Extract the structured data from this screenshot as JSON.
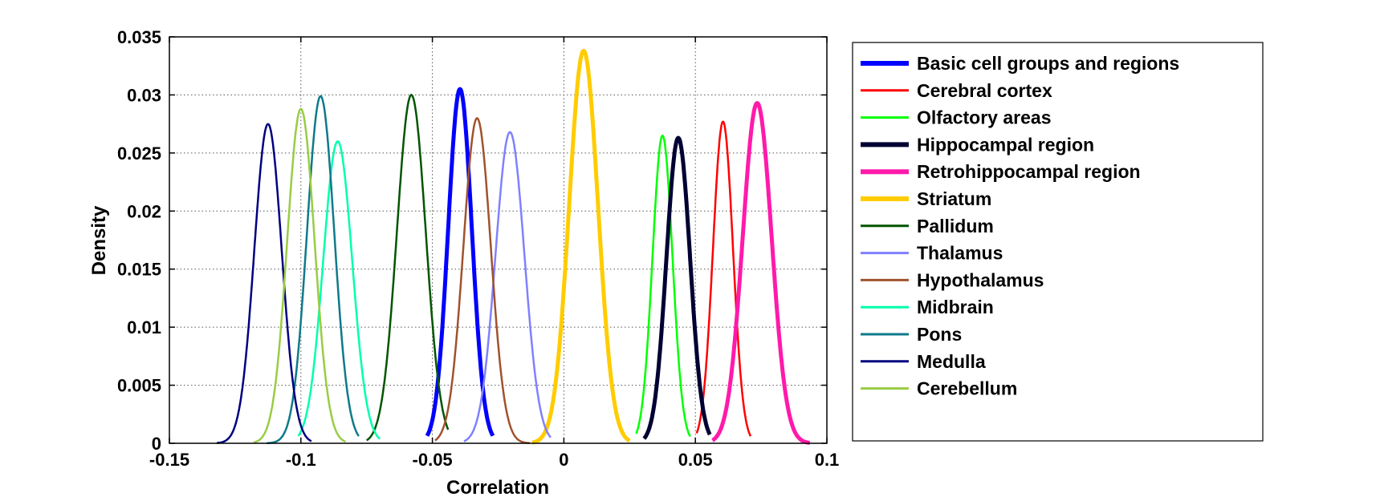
{
  "chart_data": {
    "type": "line",
    "title": "",
    "xlabel": "Correlation",
    "ylabel": "Density",
    "xlim": [
      -0.15,
      0.1
    ],
    "ylim": [
      0,
      0.035
    ],
    "grid": true,
    "legend_position": "outside-right",
    "x_ticks": [
      -0.15,
      -0.1,
      -0.05,
      0,
      0.05,
      0.1
    ],
    "x_tick_labels": [
      "-0.15",
      "-0.1",
      "-0.05",
      "0",
      "0.05",
      "0.1"
    ],
    "y_ticks": [
      0,
      0.005,
      0.01,
      0.015,
      0.02,
      0.025,
      0.03,
      0.035
    ],
    "y_tick_labels": [
      "0",
      "0.005",
      "0.01",
      "0.015",
      "0.02",
      "0.025",
      "0.03",
      "0.035"
    ],
    "series": [
      {
        "name": "Basic cell groups and regions",
        "color": "#0000ff",
        "thick": true,
        "mean": -0.0395,
        "sd": 0.0045,
        "peak": 0.0305,
        "from": -0.052,
        "to": -0.027
      },
      {
        "name": "Cerebral cortex",
        "color": "#ff0000",
        "thick": false,
        "mean": 0.0605,
        "sd": 0.0038,
        "peak": 0.0277,
        "from": 0.0505,
        "to": 0.071
      },
      {
        "name": "Olfactory areas",
        "color": "#00ff00",
        "thick": false,
        "mean": 0.0375,
        "sd": 0.0038,
        "peak": 0.0265,
        "from": 0.0275,
        "to": 0.048
      },
      {
        "name": "Hippocampal region",
        "color": "#000033",
        "thick": true,
        "mean": 0.0435,
        "sd": 0.0045,
        "peak": 0.0263,
        "from": 0.0305,
        "to": 0.0555
      },
      {
        "name": "Retrohippocampal region",
        "color": "#ff1aaa",
        "thick": true,
        "mean": 0.0735,
        "sd": 0.0055,
        "peak": 0.0293,
        "from": 0.0565,
        "to": 0.0935
      },
      {
        "name": "Striatum",
        "color": "#ffcc00",
        "thick": true,
        "mean": 0.0075,
        "sd": 0.0055,
        "peak": 0.0338,
        "from": -0.012,
        "to": 0.025
      },
      {
        "name": "Pallidum",
        "color": "#005500",
        "thick": false,
        "mean": -0.058,
        "sd": 0.0055,
        "peak": 0.03,
        "from": -0.075,
        "to": -0.044
      },
      {
        "name": "Thalamus",
        "color": "#8080ff",
        "thick": false,
        "mean": -0.0205,
        "sd": 0.0055,
        "peak": 0.0268,
        "from": -0.038,
        "to": -0.005
      },
      {
        "name": "Hypothalamus",
        "color": "#a0522d",
        "thick": false,
        "mean": -0.033,
        "sd": 0.0052,
        "peak": 0.028,
        "from": -0.049,
        "to": -0.013
      },
      {
        "name": "Midbrain",
        "color": "#00ffaa",
        "thick": false,
        "mean": -0.086,
        "sd": 0.0055,
        "peak": 0.026,
        "from": -0.101,
        "to": -0.07
      },
      {
        "name": "Pons",
        "color": "#0d7a8a",
        "thick": false,
        "mean": -0.0925,
        "sd": 0.0052,
        "peak": 0.0299,
        "from": -0.113,
        "to": -0.078
      },
      {
        "name": "Medulla",
        "color": "#000080",
        "thick": false,
        "mean": -0.1125,
        "sd": 0.0052,
        "peak": 0.0275,
        "from": -0.132,
        "to": -0.096
      },
      {
        "name": "Cerebellum",
        "color": "#99cc44",
        "thick": false,
        "mean": -0.1,
        "sd": 0.0052,
        "peak": 0.0288,
        "from": -0.118,
        "to": -0.083
      }
    ]
  }
}
